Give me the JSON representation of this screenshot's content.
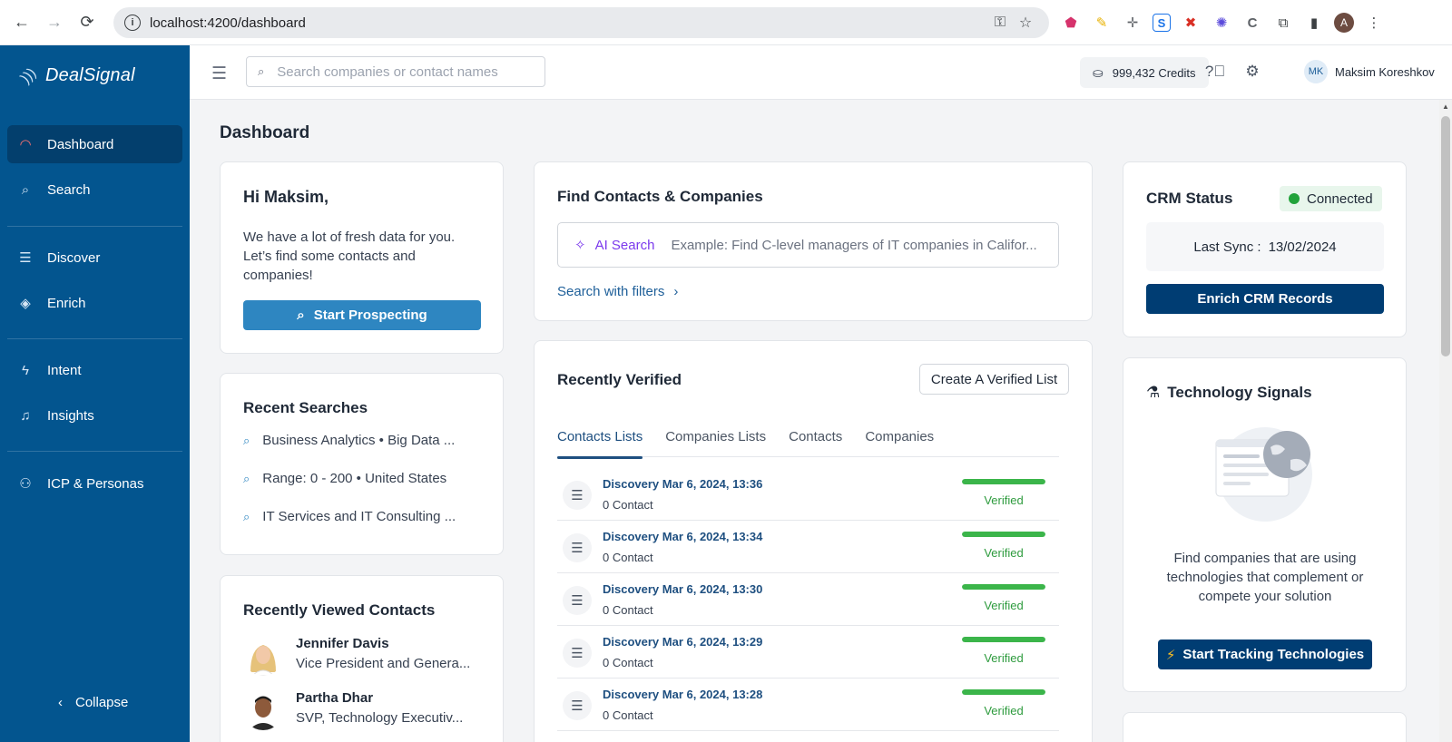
{
  "browser": {
    "url": "localhost:4200/dashboard",
    "profile_initial": "A"
  },
  "sidebar": {
    "brand": "DealSignal",
    "items": [
      {
        "label": "Dashboard",
        "icon": "gauge-icon",
        "active": true
      },
      {
        "label": "Search",
        "icon": "search-icon"
      },
      {
        "label": "Discover",
        "icon": "checklist-icon"
      },
      {
        "label": "Enrich",
        "icon": "layers-icon"
      },
      {
        "label": "Intent",
        "icon": "bolt-icon"
      },
      {
        "label": "Insights",
        "icon": "bell-icon"
      },
      {
        "label": "ICP & Personas",
        "icon": "users-icon"
      }
    ],
    "collapse_label": "Collapse"
  },
  "header": {
    "search_placeholder": "Search companies or contact names",
    "credits": "999,432 Credits",
    "user_initials": "MK",
    "user_name": "Maksim Koreshkov"
  },
  "page": {
    "title": "Dashboard"
  },
  "greeting": {
    "title": "Hi Maksim,",
    "text": "We have a lot of fresh data for you. Let’s find some contacts and companies!",
    "button": "Start Prospecting"
  },
  "recent_searches": {
    "title": "Recent Searches",
    "items": [
      "Business Analytics • Big Data ...",
      "Range: 0 - 200 • United States",
      "IT Services and IT Consulting ..."
    ]
  },
  "recently_viewed": {
    "title": "Recently Viewed Contacts",
    "contacts": [
      {
        "name": "Jennifer Davis",
        "title": "Vice President and Genera..."
      },
      {
        "name": "Partha Dhar",
        "title": "SVP, Technology Executiv..."
      }
    ]
  },
  "find": {
    "title": "Find Contacts & Companies",
    "ai_label": "AI Search",
    "ai_placeholder": "Example: Find C-level managers of IT companies in Califor...",
    "filters_link": "Search with filters"
  },
  "verified": {
    "title": "Recently Verified",
    "create_button": "Create A Verified List",
    "tabs": [
      "Contacts Lists",
      "Companies Lists",
      "Contacts",
      "Companies"
    ],
    "active_tab": 0,
    "rows": [
      {
        "name": "Discovery Mar 6, 2024, 13:36",
        "count": "0 Contact",
        "status": "Verified",
        "progress": 1.0
      },
      {
        "name": "Discovery Mar 6, 2024, 13:34",
        "count": "0 Contact",
        "status": "Verified",
        "progress": 1.0
      },
      {
        "name": "Discovery Mar 6, 2024, 13:30",
        "count": "0 Contact",
        "status": "Verified",
        "progress": 1.0
      },
      {
        "name": "Discovery Mar 6, 2024, 13:29",
        "count": "0 Contact",
        "status": "Verified",
        "progress": 1.0
      },
      {
        "name": "Discovery Mar 6, 2024, 13:28",
        "count": "0 Contact",
        "status": "Verified",
        "progress": 1.0
      }
    ]
  },
  "crm": {
    "title": "CRM Status",
    "status": "Connected",
    "sync_label": "Last Sync :",
    "sync_date": "13/02/2024",
    "button": "Enrich CRM Records"
  },
  "tech": {
    "title": "Technology Signals",
    "text": "Find companies that are using technologies that complement or compete your solution",
    "button": "Start Tracking Technologies"
  },
  "colors": {
    "sidebar": "#03558f",
    "primary": "#2e86c1",
    "dark_button": "#003d73",
    "verified_green": "#3bb54a"
  }
}
